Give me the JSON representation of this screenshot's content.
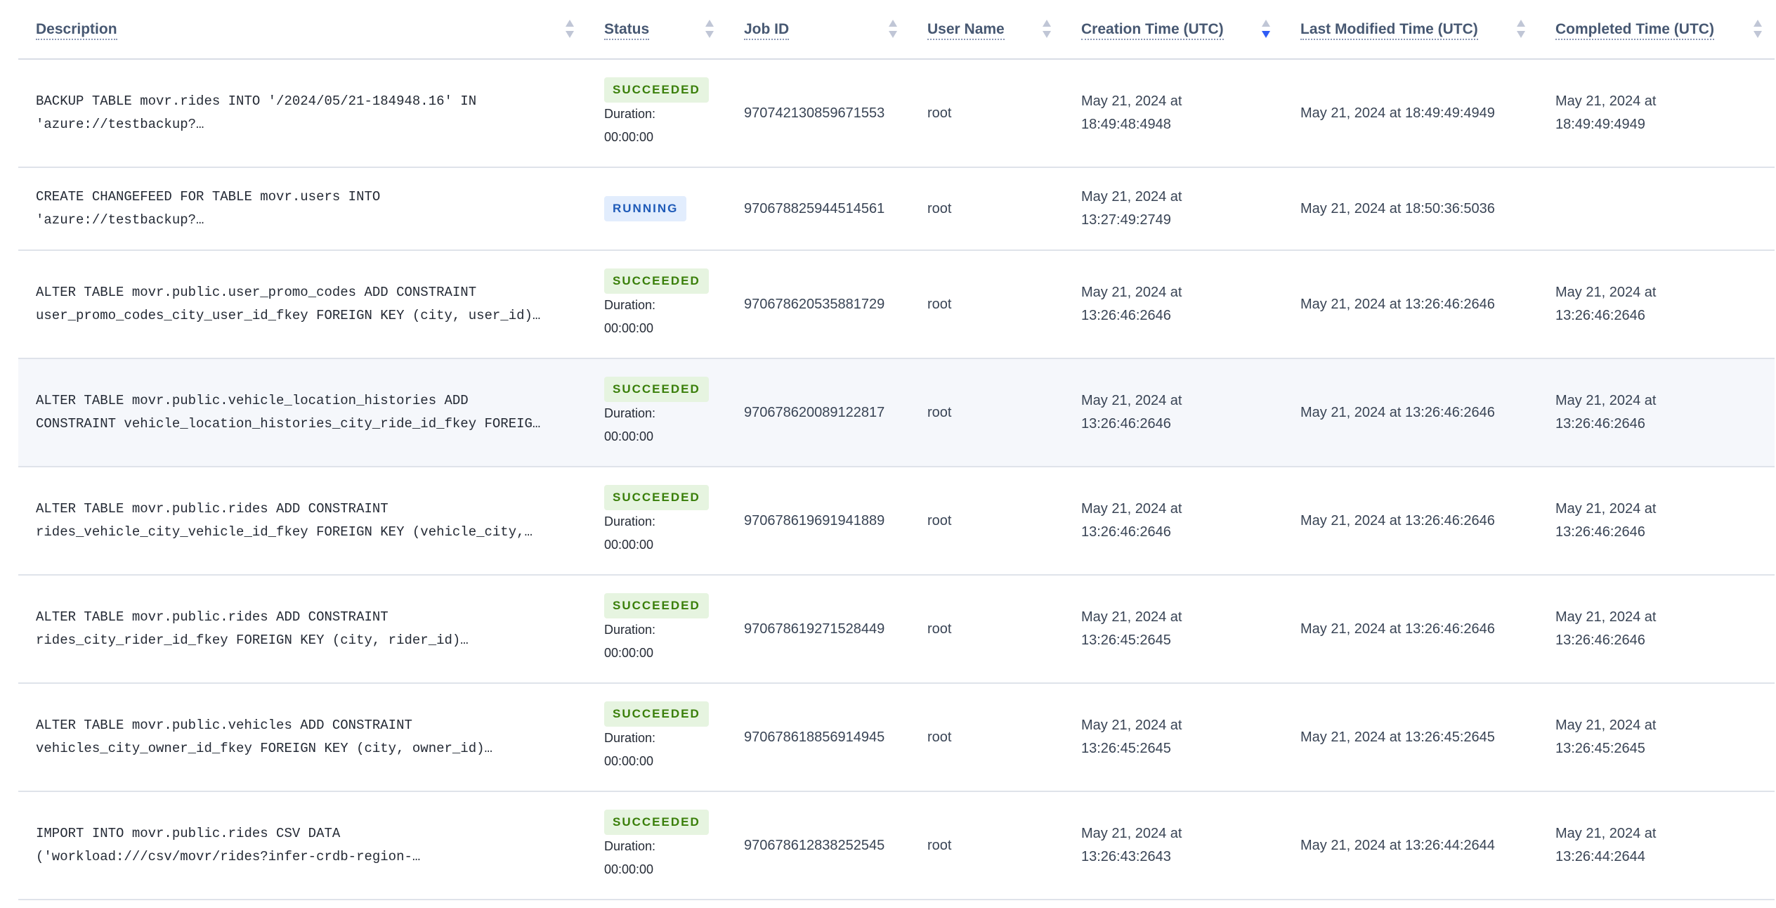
{
  "colors": {
    "accent": "#2f5cf5",
    "succeeded_bg": "#e6f4e0",
    "succeeded_text": "#3a7f0a",
    "running_bg": "#e2edfd",
    "running_text": "#1f5bb8"
  },
  "columns": [
    {
      "label": "Description",
      "sort": "none"
    },
    {
      "label": "Status",
      "sort": "none"
    },
    {
      "label": "Job ID",
      "sort": "none"
    },
    {
      "label": "User Name",
      "sort": "none"
    },
    {
      "label": "Creation Time (UTC)",
      "sort": "descending"
    },
    {
      "label": "Last Modified Time (UTC)",
      "sort": "none"
    },
    {
      "label": "Completed Time (UTC)",
      "sort": "none"
    }
  ],
  "duration_label": "Duration:",
  "rows": [
    {
      "desc1": "BACKUP TABLE movr.rides INTO '/2024/05/21-184948.16' IN",
      "desc2": "'azure://testbackup?…",
      "status": "SUCCEEDED",
      "duration": "00:00:00",
      "job_id": "970742130859671553",
      "user": "root",
      "created1": "May 21, 2024 at",
      "created2": "18:49:48:4948",
      "modified": "May 21, 2024 at 18:49:49:4949",
      "completed1": "May 21, 2024 at",
      "completed2": "18:49:49:4949"
    },
    {
      "desc1": "CREATE CHANGEFEED FOR TABLE movr.users INTO",
      "desc2": "'azure://testbackup?…",
      "status": "RUNNING",
      "job_id": "970678825944514561",
      "user": "root",
      "created1": "May 21, 2024 at",
      "created2": "13:27:49:2749",
      "modified": "May 21, 2024 at 18:50:36:5036"
    },
    {
      "desc1": "ALTER TABLE movr.public.user_promo_codes ADD CONSTRAINT",
      "desc2": "user_promo_codes_city_user_id_fkey FOREIGN KEY (city, user_id)…",
      "status": "SUCCEEDED",
      "duration": "00:00:00",
      "job_id": "970678620535881729",
      "user": "root",
      "created1": "May 21, 2024 at",
      "created2": "13:26:46:2646",
      "modified": "May 21, 2024 at 13:26:46:2646",
      "completed1": "May 21, 2024 at",
      "completed2": "13:26:46:2646"
    },
    {
      "desc1": "ALTER TABLE movr.public.vehicle_location_histories ADD",
      "desc2": "CONSTRAINT vehicle_location_histories_city_ride_id_fkey FOREIG…",
      "status": "SUCCEEDED",
      "duration": "00:00:00",
      "job_id": "970678620089122817",
      "user": "root",
      "created1": "May 21, 2024 at",
      "created2": "13:26:46:2646",
      "modified": "May 21, 2024 at 13:26:46:2646",
      "completed1": "May 21, 2024 at",
      "completed2": "13:26:46:2646"
    },
    {
      "desc1": "ALTER TABLE movr.public.rides ADD CONSTRAINT",
      "desc2": "rides_vehicle_city_vehicle_id_fkey FOREIGN KEY (vehicle_city,…",
      "status": "SUCCEEDED",
      "duration": "00:00:00",
      "job_id": "970678619691941889",
      "user": "root",
      "created1": "May 21, 2024 at",
      "created2": "13:26:46:2646",
      "modified": "May 21, 2024 at 13:26:46:2646",
      "completed1": "May 21, 2024 at",
      "completed2": "13:26:46:2646"
    },
    {
      "desc1": "ALTER TABLE movr.public.rides ADD CONSTRAINT",
      "desc2": "rides_city_rider_id_fkey FOREIGN KEY (city, rider_id)…",
      "status": "SUCCEEDED",
      "duration": "00:00:00",
      "job_id": "970678619271528449",
      "user": "root",
      "created1": "May 21, 2024 at",
      "created2": "13:26:45:2645",
      "modified": "May 21, 2024 at 13:26:46:2646",
      "completed1": "May 21, 2024 at",
      "completed2": "13:26:46:2646"
    },
    {
      "desc1": "ALTER TABLE movr.public.vehicles ADD CONSTRAINT",
      "desc2": "vehicles_city_owner_id_fkey FOREIGN KEY (city, owner_id)…",
      "status": "SUCCEEDED",
      "duration": "00:00:00",
      "job_id": "970678618856914945",
      "user": "root",
      "created1": "May 21, 2024 at",
      "created2": "13:26:45:2645",
      "modified": "May 21, 2024 at 13:26:45:2645",
      "completed1": "May 21, 2024 at",
      "completed2": "13:26:45:2645"
    },
    {
      "desc1": "IMPORT INTO movr.public.rides CSV DATA",
      "desc2": "('workload:///csv/movr/rides?infer-crdb-region-…",
      "status": "SUCCEEDED",
      "duration": "00:00:00",
      "job_id": "970678612838252545",
      "user": "root",
      "created1": "May 21, 2024 at",
      "created2": "13:26:43:2643",
      "modified": "May 21, 2024 at 13:26:44:2644",
      "completed1": "May 21, 2024 at",
      "completed2": "13:26:44:2644"
    }
  ]
}
